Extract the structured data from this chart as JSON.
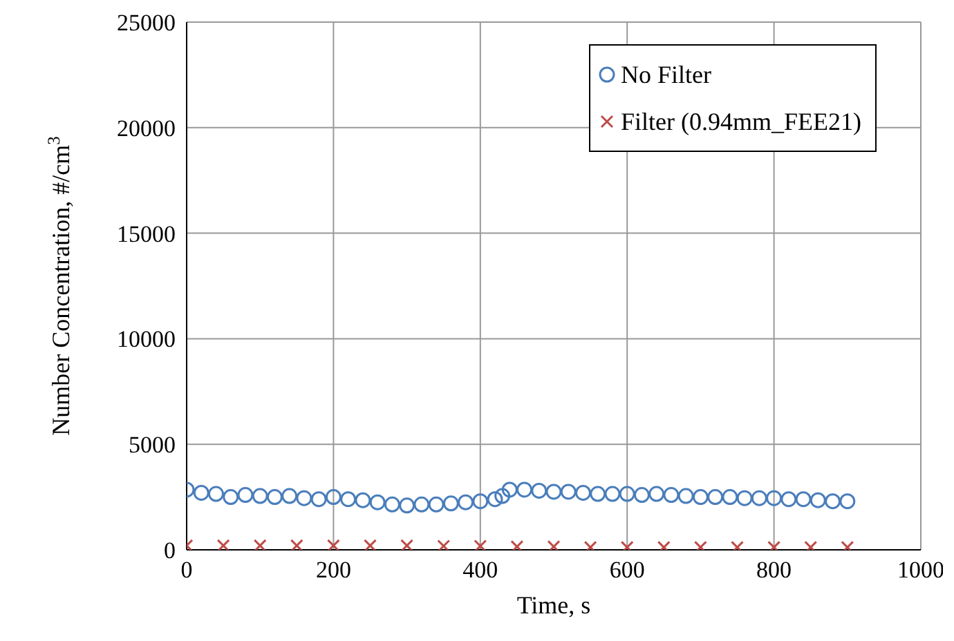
{
  "chart_data": {
    "type": "scatter",
    "xlabel": "Time, s",
    "ylabel": "Number Concentration, #/cm$^{3}$",
    "xlim": [
      0,
      1000
    ],
    "xticks": [
      0,
      200,
      400,
      600,
      800,
      1000
    ],
    "ylim": [
      0,
      25000
    ],
    "yticks": [
      0,
      5000,
      10000,
      15000,
      20000,
      25000
    ],
    "grid": true,
    "legend": "top right",
    "series": [
      {
        "name": "No Filter",
        "color": "#4a7ebb",
        "marker": "circle",
        "x": [
          0,
          20,
          40,
          60,
          80,
          100,
          120,
          140,
          160,
          180,
          200,
          220,
          240,
          260,
          280,
          300,
          320,
          340,
          360,
          380,
          400,
          420,
          430,
          440,
          460,
          480,
          500,
          520,
          540,
          560,
          580,
          600,
          620,
          640,
          660,
          680,
          700,
          720,
          740,
          760,
          780,
          800,
          820,
          840,
          860,
          880,
          900
        ],
        "values": [
          2850,
          2700,
          2650,
          2500,
          2600,
          2550,
          2500,
          2550,
          2450,
          2400,
          2500,
          2400,
          2350,
          2250,
          2150,
          2100,
          2150,
          2150,
          2200,
          2250,
          2300,
          2400,
          2550,
          2850,
          2850,
          2800,
          2750,
          2750,
          2700,
          2650,
          2650,
          2650,
          2600,
          2650,
          2600,
          2550,
          2500,
          2500,
          2500,
          2450,
          2450,
          2450,
          2400,
          2400,
          2350,
          2300,
          2300
        ]
      },
      {
        "name": "Filter (0.94mm_FEE21)",
        "color": "#be4b48",
        "marker": "cross",
        "x": [
          0,
          50,
          100,
          150,
          200,
          250,
          300,
          350,
          400,
          450,
          500,
          550,
          600,
          650,
          700,
          750,
          800,
          850,
          900
        ],
        "values": [
          200,
          200,
          200,
          200,
          200,
          200,
          200,
          180,
          180,
          150,
          150,
          120,
          120,
          120,
          120,
          120,
          120,
          120,
          120
        ]
      }
    ]
  }
}
